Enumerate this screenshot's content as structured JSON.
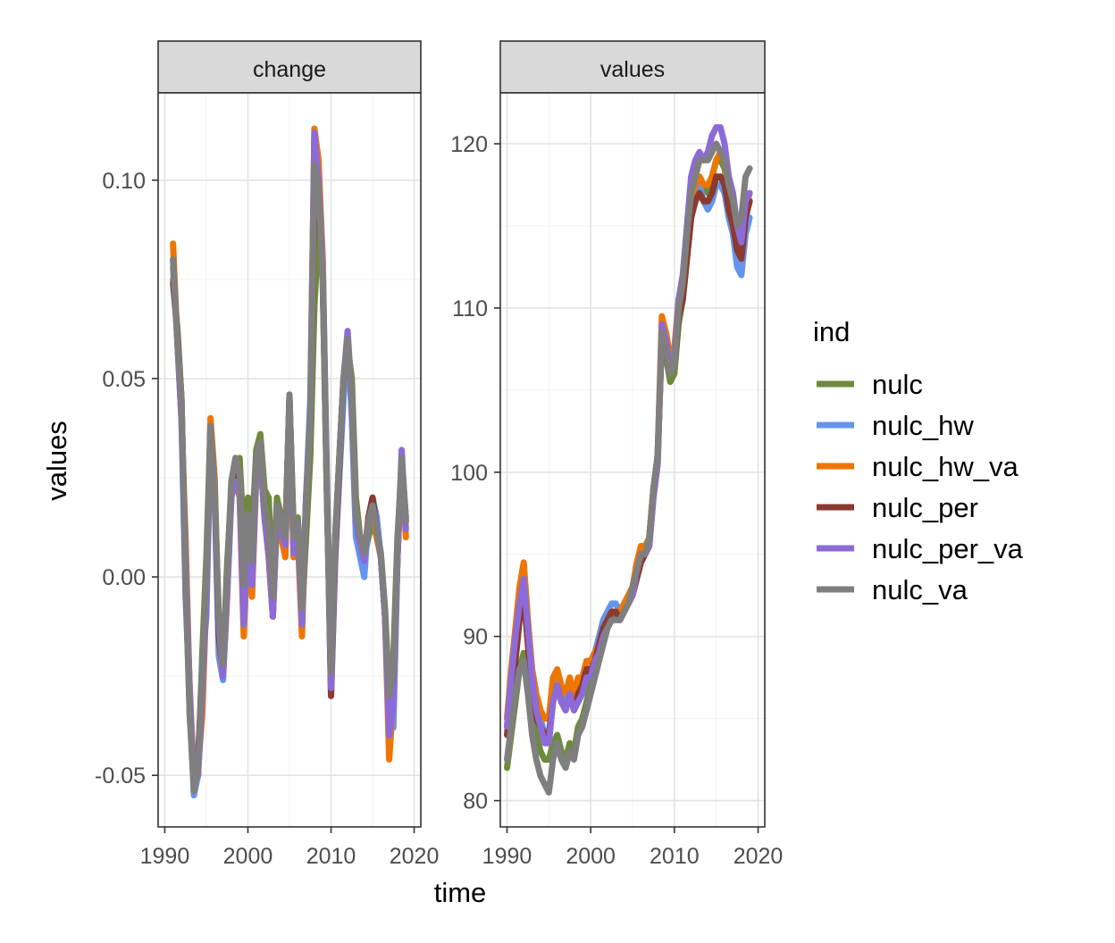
{
  "chart_data": {
    "type": "line",
    "xlabel": "time",
    "ylabel": "values",
    "legend": {
      "title": "ind",
      "position": "right"
    },
    "series_names": [
      "nulc",
      "nulc_hw",
      "nulc_hw_va",
      "nulc_per",
      "nulc_per_va",
      "nulc_va"
    ],
    "series_colors": [
      "#6e8b3d",
      "#6495ed",
      "#ee7600",
      "#8b3a2f",
      "#8c6bd8",
      "#7f7f7f"
    ],
    "grid": true,
    "panels": [
      {
        "strip": "change",
        "xlim": [
          1989.2,
          2020.8
        ],
        "ylim": [
          -0.063,
          0.122
        ],
        "xticks": [
          1990,
          2000,
          2010,
          2020
        ],
        "xtick_labels": [
          "1990",
          "2000",
          "2010",
          "2020"
        ],
        "yticks": [
          -0.05,
          0.0,
          0.05,
          0.1
        ],
        "ytick_labels": [
          "-0.05",
          "0.00",
          "0.05",
          "0.10"
        ],
        "x": [
          1991.0,
          1991.5,
          1992.0,
          1992.5,
          1993.0,
          1993.5,
          1994.0,
          1994.5,
          1995.0,
          1995.5,
          1996.0,
          1996.5,
          1997.0,
          1997.5,
          1998.0,
          1998.5,
          1999.0,
          1999.5,
          2000.0,
          2000.5,
          2001.0,
          2001.5,
          2002.0,
          2002.5,
          2003.0,
          2003.5,
          2004.0,
          2004.5,
          2005.0,
          2005.5,
          2006.0,
          2006.5,
          2007.0,
          2007.5,
          2008.0,
          2008.5,
          2009.0,
          2009.5,
          2010.0,
          2010.5,
          2011.0,
          2011.5,
          2012.0,
          2012.5,
          2013.0,
          2013.5,
          2014.0,
          2014.5,
          2015.0,
          2015.5,
          2016.0,
          2016.5,
          2017.0,
          2017.5,
          2018.0,
          2018.5,
          2019.0
        ],
        "series": [
          {
            "name": "nulc",
            "values": [
              0.075,
              0.063,
              0.045,
              0.0,
              -0.028,
              -0.052,
              -0.05,
              -0.02,
              0.005,
              0.038,
              0.02,
              -0.01,
              -0.022,
              0.003,
              0.022,
              0.028,
              0.03,
              0.01,
              0.02,
              0.01,
              0.032,
              0.036,
              0.022,
              0.02,
              -0.005,
              0.02,
              0.015,
              0.005,
              0.045,
              0.012,
              0.015,
              -0.01,
              0.01,
              0.03,
              0.068,
              0.088,
              0.075,
              0.02,
              -0.02,
              0.01,
              0.03,
              0.05,
              0.058,
              0.05,
              0.02,
              0.01,
              0.005,
              0.01,
              0.014,
              0.01,
              0.005,
              -0.01,
              -0.03,
              -0.02,
              0.01,
              0.028,
              0.015
            ]
          },
          {
            "name": "nulc_hw",
            "values": [
              0.078,
              0.06,
              0.04,
              -0.005,
              -0.03,
              -0.055,
              -0.05,
              -0.022,
              -0.01,
              0.035,
              0.02,
              -0.02,
              -0.026,
              -0.005,
              0.02,
              0.025,
              0.025,
              -0.005,
              0.015,
              0.0,
              0.028,
              0.03,
              0.015,
              0.005,
              -0.01,
              0.015,
              0.01,
              0.01,
              0.045,
              0.005,
              0.01,
              -0.005,
              0.02,
              0.045,
              0.11,
              0.102,
              0.08,
              0.025,
              -0.03,
              0.005,
              0.025,
              0.045,
              0.06,
              0.04,
              0.01,
              0.005,
              0.0,
              0.015,
              0.02,
              0.015,
              0.005,
              -0.01,
              -0.03,
              -0.038,
              0.005,
              0.03,
              0.015
            ]
          },
          {
            "name": "nulc_hw_va",
            "values": [
              0.084,
              0.06,
              0.04,
              0.01,
              -0.03,
              -0.05,
              -0.048,
              -0.035,
              -0.005,
              0.04,
              0.025,
              -0.015,
              -0.025,
              -0.005,
              0.022,
              0.025,
              0.02,
              -0.015,
              0.01,
              -0.005,
              0.025,
              0.03,
              0.015,
              0.005,
              -0.01,
              0.015,
              0.01,
              0.005,
              0.045,
              0.005,
              0.01,
              -0.015,
              0.02,
              0.04,
              0.113,
              0.105,
              0.08,
              0.02,
              -0.025,
              0.01,
              0.03,
              0.05,
              0.06,
              0.045,
              0.015,
              0.01,
              0.005,
              0.015,
              0.018,
              0.01,
              0.005,
              -0.01,
              -0.046,
              -0.03,
              0.005,
              0.03,
              0.01
            ]
          },
          {
            "name": "nulc_per",
            "values": [
              0.074,
              0.062,
              0.045,
              0.0,
              -0.035,
              -0.05,
              -0.045,
              -0.025,
              -0.002,
              0.038,
              0.022,
              -0.015,
              -0.024,
              0.0,
              0.022,
              0.026,
              0.024,
              -0.005,
              0.015,
              0.005,
              0.03,
              0.032,
              0.018,
              0.01,
              -0.006,
              0.018,
              0.014,
              0.01,
              0.045,
              0.01,
              0.014,
              -0.01,
              0.018,
              0.04,
              0.1,
              0.095,
              0.076,
              0.022,
              -0.03,
              0.005,
              0.028,
              0.05,
              0.06,
              0.045,
              0.015,
              0.01,
              0.005,
              0.015,
              0.02,
              0.012,
              0.005,
              -0.01,
              -0.035,
              -0.03,
              0.005,
              0.03,
              0.014
            ]
          },
          {
            "name": "nulc_per_va",
            "values": [
              0.08,
              0.06,
              0.04,
              0.005,
              -0.03,
              -0.052,
              -0.05,
              -0.03,
              -0.005,
              0.036,
              0.022,
              -0.012,
              -0.025,
              -0.004,
              0.02,
              0.024,
              0.022,
              -0.012,
              0.012,
              -0.002,
              0.026,
              0.03,
              0.015,
              0.006,
              -0.01,
              0.016,
              0.011,
              0.008,
              0.045,
              0.006,
              0.012,
              -0.012,
              0.02,
              0.04,
              0.112,
              0.1,
              0.078,
              0.022,
              -0.028,
              0.008,
              0.03,
              0.05,
              0.062,
              0.045,
              0.014,
              0.008,
              0.004,
              0.014,
              0.018,
              0.012,
              0.005,
              -0.01,
              -0.04,
              -0.032,
              0.005,
              0.032,
              0.012
            ]
          },
          {
            "name": "nulc_va",
            "values": [
              0.08,
              0.06,
              0.045,
              0.0,
              -0.035,
              -0.054,
              -0.048,
              -0.025,
              0.0,
              0.038,
              0.022,
              -0.01,
              -0.022,
              0.0,
              0.024,
              0.03,
              0.026,
              -0.002,
              0.016,
              0.004,
              0.03,
              0.034,
              0.018,
              0.012,
              -0.005,
              0.018,
              0.014,
              0.01,
              0.046,
              0.01,
              0.014,
              -0.008,
              0.018,
              0.04,
              0.104,
              0.098,
              0.075,
              0.022,
              -0.024,
              0.01,
              0.03,
              0.05,
              0.06,
              0.046,
              0.016,
              0.01,
              0.006,
              0.014,
              0.018,
              0.012,
              0.006,
              -0.008,
              -0.03,
              -0.025,
              0.008,
              0.03,
              0.014
            ]
          }
        ]
      },
      {
        "strip": "values",
        "xlim": [
          1989.2,
          2020.8
        ],
        "ylim": [
          78.4,
          123.1
        ],
        "xticks": [
          1990,
          2000,
          2010,
          2020
        ],
        "xtick_labels": [
          "1990",
          "2000",
          "2010",
          "2020"
        ],
        "yticks": [
          80,
          90,
          100,
          110,
          120
        ],
        "ytick_labels": [
          "80",
          "90",
          "100",
          "110",
          "120"
        ],
        "x": [
          1990.0,
          1990.5,
          1991.0,
          1991.5,
          1992.0,
          1992.5,
          1993.0,
          1993.5,
          1994.0,
          1994.5,
          1995.0,
          1995.5,
          1996.0,
          1996.5,
          1997.0,
          1997.5,
          1998.0,
          1998.5,
          1999.0,
          1999.5,
          2000.0,
          2000.5,
          2001.0,
          2001.5,
          2002.0,
          2002.5,
          2003.0,
          2003.5,
          2004.0,
          2004.5,
          2005.0,
          2005.5,
          2006.0,
          2006.5,
          2007.0,
          2007.5,
          2008.0,
          2008.5,
          2009.0,
          2009.5,
          2010.0,
          2010.5,
          2011.0,
          2011.5,
          2012.0,
          2012.5,
          2013.0,
          2013.5,
          2014.0,
          2014.5,
          2015.0,
          2015.5,
          2016.0,
          2016.5,
          2017.0,
          2017.5,
          2018.0,
          2018.5,
          2019.0
        ],
        "series": [
          {
            "name": "nulc",
            "values": [
              82.0,
              84.0,
              86.0,
              88.0,
              89.0,
              87.0,
              85.0,
              84.0,
              83.0,
              82.5,
              82.5,
              83.5,
              84.0,
              83.0,
              82.5,
              83.5,
              83.0,
              84.5,
              85.0,
              86.0,
              87.0,
              88.0,
              89.0,
              90.0,
              91.0,
              91.0,
              91.5,
              91.0,
              92.0,
              92.5,
              93.0,
              94.0,
              95.0,
              95.0,
              96.0,
              99.0,
              101.0,
              108.0,
              107.0,
              105.5,
              106.0,
              109.0,
              110.5,
              113.0,
              115.5,
              117.0,
              118.0,
              117.5,
              117.0,
              118.0,
              119.0,
              119.0,
              118.5,
              117.0,
              116.0,
              114.5,
              115.0,
              117.0,
              116.5
            ]
          },
          {
            "name": "nulc_hw",
            "values": [
              84.5,
              87.0,
              89.0,
              91.5,
              93.0,
              90.0,
              87.0,
              85.5,
              85.0,
              84.0,
              84.0,
              86.5,
              87.5,
              86.5,
              86.0,
              87.0,
              86.0,
              87.0,
              87.5,
              88.5,
              88.5,
              89.0,
              90.0,
              91.0,
              91.5,
              92.0,
              92.0,
              91.5,
              92.0,
              92.5,
              93.0,
              94.0,
              95.0,
              95.0,
              96.0,
              99.0,
              101.0,
              109.0,
              108.0,
              106.5,
              107.0,
              110.0,
              111.0,
              113.5,
              116.0,
              117.0,
              117.5,
              116.5,
              116.0,
              116.5,
              117.5,
              117.5,
              117.0,
              115.5,
              114.5,
              112.5,
              112.0,
              114.5,
              115.5
            ]
          },
          {
            "name": "nulc_hw_va",
            "values": [
              85.0,
              88.0,
              90.5,
              93.0,
              94.5,
              91.0,
              88.0,
              86.5,
              85.5,
              85.0,
              85.0,
              87.5,
              88.0,
              87.0,
              86.5,
              87.5,
              86.5,
              87.5,
              87.5,
              88.5,
              88.5,
              89.0,
              89.5,
              90.5,
              91.0,
              91.5,
              91.5,
              91.5,
              92.0,
              92.5,
              93.0,
              94.5,
              95.5,
              95.5,
              96.0,
              99.0,
              101.0,
              109.5,
              108.5,
              107.0,
              107.5,
              110.5,
              111.5,
              114.0,
              116.5,
              117.5,
              118.0,
              117.5,
              117.5,
              118.0,
              119.0,
              119.5,
              119.0,
              117.0,
              116.0,
              114.0,
              113.5,
              116.0,
              117.0
            ]
          },
          {
            "name": "nulc_per",
            "values": [
              84.0,
              86.5,
              88.5,
              91.0,
              92.5,
              89.5,
              86.5,
              85.0,
              84.5,
              84.0,
              84.0,
              86.0,
              87.0,
              86.0,
              85.5,
              86.5,
              85.5,
              86.5,
              87.0,
              88.0,
              88.0,
              88.5,
              89.5,
              90.5,
              91.0,
              91.5,
              91.5,
              91.0,
              91.5,
              92.0,
              92.5,
              93.5,
              94.5,
              95.0,
              95.5,
              98.5,
              100.5,
              108.5,
              107.5,
              106.0,
              106.5,
              109.5,
              110.5,
              113.0,
              115.5,
              116.5,
              117.0,
              116.5,
              116.5,
              117.0,
              118.0,
              118.0,
              117.5,
              116.0,
              115.0,
              113.5,
              113.0,
              115.5,
              116.5
            ]
          },
          {
            "name": "nulc_per_va",
            "values": [
              84.5,
              87.5,
              90.0,
              92.0,
              93.5,
              90.5,
              87.5,
              85.5,
              84.5,
              83.5,
              83.5,
              86.0,
              87.0,
              86.0,
              85.5,
              86.5,
              85.5,
              86.0,
              86.5,
              87.5,
              87.5,
              88.5,
              89.0,
              90.0,
              90.5,
              91.0,
              91.0,
              91.0,
              91.5,
              92.0,
              92.5,
              94.0,
              95.0,
              95.0,
              95.5,
              98.5,
              100.5,
              109.0,
              108.0,
              106.5,
              107.0,
              110.5,
              112.0,
              115.0,
              118.0,
              119.0,
              119.5,
              119.0,
              119.5,
              120.5,
              121.0,
              121.0,
              120.0,
              118.0,
              117.0,
              115.0,
              114.0,
              116.5,
              117.0
            ]
          },
          {
            "name": "nulc_va",
            "values": [
              82.5,
              84.5,
              86.5,
              88.0,
              88.5,
              86.5,
              84.0,
              82.5,
              81.5,
              81.0,
              80.5,
              82.5,
              83.5,
              82.5,
              82.0,
              83.0,
              82.5,
              84.0,
              84.5,
              85.5,
              86.5,
              87.5,
              88.5,
              89.5,
              90.5,
              91.0,
              91.0,
              91.0,
              91.5,
              92.0,
              93.0,
              94.0,
              95.0,
              95.0,
              96.0,
              99.0,
              101.0,
              108.5,
              107.5,
              106.0,
              106.5,
              110.0,
              111.5,
              114.5,
              117.0,
              118.0,
              119.0,
              119.0,
              119.0,
              119.5,
              120.0,
              119.5,
              119.0,
              117.5,
              116.5,
              115.0,
              115.5,
              118.0,
              118.5
            ]
          }
        ]
      }
    ]
  }
}
